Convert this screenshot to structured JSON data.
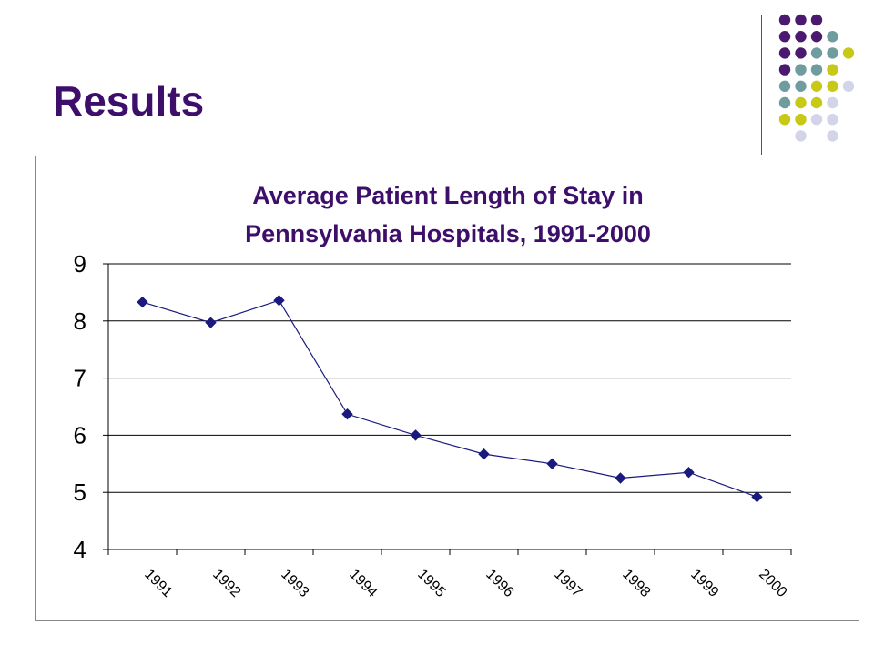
{
  "slide": {
    "title": "Results"
  },
  "decoration": {
    "dot_colors": {
      "purple": "#4b1a70",
      "teal": "#6f9d9f",
      "yellow": "#c8c816",
      "lavender": "#d3d3ea"
    }
  },
  "colors": {
    "title": "#3d0f6b",
    "series": "#1a1a7e",
    "grid": "#000000"
  },
  "chart_data": {
    "type": "line",
    "title_lines": [
      "Average Patient Length of Stay in",
      "Pennsylvania Hospitals, 1991-2000"
    ],
    "categories": [
      "1991",
      "1992",
      "1993",
      "1994",
      "1995",
      "1996",
      "1997",
      "1998",
      "1999",
      "2000"
    ],
    "series": [
      {
        "values": [
          8.33,
          7.97,
          8.36,
          6.37,
          6.0,
          5.67,
          5.5,
          5.25,
          5.35,
          4.92
        ]
      }
    ],
    "ylim": [
      4,
      9
    ],
    "yticks": [
      4,
      5,
      6,
      7,
      8,
      9
    ],
    "grid": true,
    "legend": "none"
  }
}
